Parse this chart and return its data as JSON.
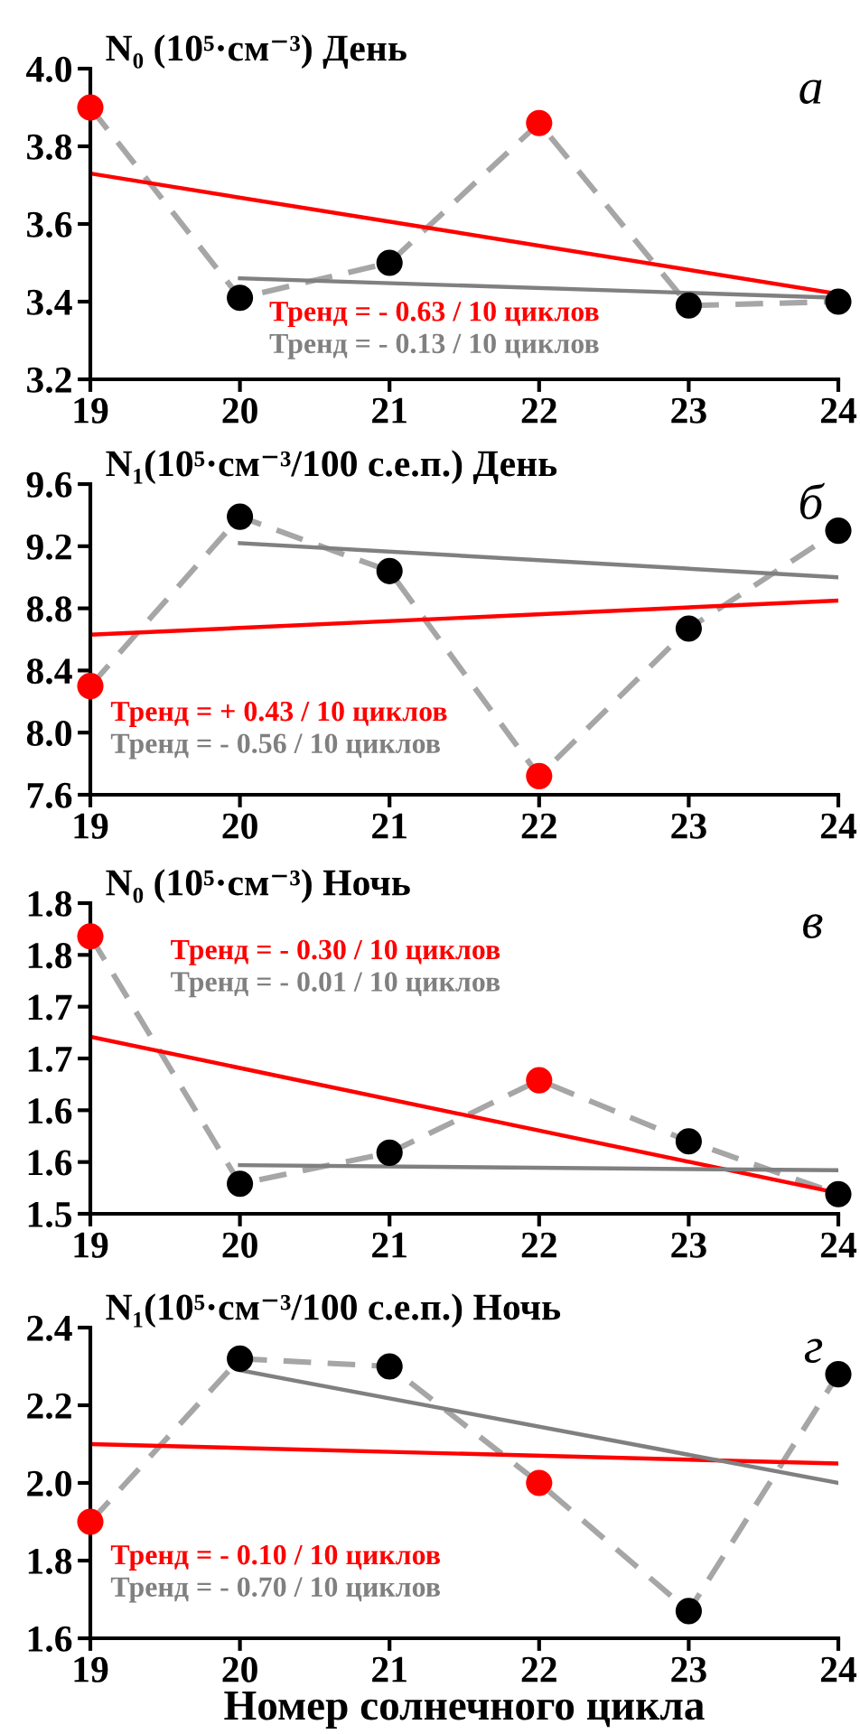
{
  "chart_data": [
    {
      "type": "line",
      "title": "N₀ (10⁵·см⁻³) День",
      "annotations": [
        "а"
      ],
      "xlim": [
        19,
        24
      ],
      "xticks": [
        19,
        20,
        21,
        22,
        23,
        24
      ],
      "ylim": [
        3.2,
        4.0
      ],
      "yticks": [
        {
          "value": 3.2,
          "label": "3.2"
        },
        {
          "value": 3.4,
          "label": "3.4"
        },
        {
          "value": 3.6,
          "label": "3.6"
        },
        {
          "value": 3.8,
          "label": "3.8"
        },
        {
          "value": 4.0,
          "label": "4.0"
        }
      ],
      "grid": false,
      "legend": "bottom",
      "x": [
        19,
        20,
        21,
        22,
        23,
        24
      ],
      "series": [
        {
          "color": "#a6a6a6",
          "line_style": "dashed",
          "marker": "none",
          "values": [
            3.9,
            3.41,
            3.5,
            3.86,
            3.39,
            3.4
          ]
        },
        {
          "type": "scatter",
          "colors": [
            "#ff0000",
            "#000000",
            "#000000",
            "#ff0000",
            "#000000",
            "#000000"
          ],
          "marker": "circle",
          "values": [
            3.9,
            3.41,
            3.5,
            3.86,
            3.39,
            3.4
          ]
        },
        {
          "name": "Тренд = - 0.63 / 10 циклов",
          "color": "#ff0000",
          "line_style": "solid",
          "marker": "none",
          "x": [
            19,
            24
          ],
          "values": [
            3.73,
            3.42
          ]
        },
        {
          "name": "Тренд = - 0.13 / 10 циклов",
          "color": "#808080",
          "line_style": "solid",
          "marker": "none",
          "x": [
            20,
            24
          ],
          "values": [
            3.46,
            3.41
          ]
        }
      ]
    },
    {
      "type": "line",
      "title": "N₁(10⁵·см⁻³/100 с.е.п.) День",
      "annotations": [
        "б"
      ],
      "xlim": [
        19,
        24
      ],
      "xticks": [
        19,
        20,
        21,
        22,
        23,
        24
      ],
      "ylim": [
        7.6,
        9.6
      ],
      "yticks": [
        {
          "value": 7.6,
          "label": "7.6"
        },
        {
          "value": 8.0,
          "label": "8.0"
        },
        {
          "value": 8.4,
          "label": "8.4"
        },
        {
          "value": 8.8,
          "label": "8.8"
        },
        {
          "value": 9.2,
          "label": "9.2"
        },
        {
          "value": 9.6,
          "label": "9.6"
        }
      ],
      "grid": false,
      "legend": "bottom left",
      "x": [
        19,
        20,
        21,
        22,
        23,
        24
      ],
      "series": [
        {
          "color": "#a6a6a6",
          "line_style": "dashed",
          "marker": "none",
          "values": [
            8.3,
            9.39,
            9.04,
            7.72,
            8.67,
            9.3
          ]
        },
        {
          "type": "scatter",
          "colors": [
            "#ff0000",
            "#000000",
            "#000000",
            "#ff0000",
            "#000000",
            "#000000"
          ],
          "marker": "circle",
          "values": [
            8.3,
            9.39,
            9.04,
            7.72,
            8.67,
            9.3
          ]
        },
        {
          "name": "Тренд = + 0.43 / 10 циклов",
          "color": "#ff0000",
          "line_style": "solid",
          "marker": "none",
          "x": [
            19,
            24
          ],
          "values": [
            8.63,
            8.85
          ]
        },
        {
          "name": "Тренд = - 0.56 / 10 циклов",
          "color": "#808080",
          "line_style": "solid",
          "marker": "none",
          "x": [
            20,
            24
          ],
          "values": [
            9.22,
            9.0
          ]
        }
      ]
    },
    {
      "type": "line",
      "title": "N₀ (10⁵·см⁻³) Ночь",
      "annotations": [
        "в"
      ],
      "xlim": [
        19,
        24
      ],
      "xticks": [
        19,
        20,
        21,
        22,
        23,
        24
      ],
      "ylim": [
        1.5,
        1.8
      ],
      "yticks": [
        {
          "value": 1.5,
          "label": "1.5"
        },
        {
          "value": 1.55,
          "label": "1.6"
        },
        {
          "value": 1.6,
          "label": "1.6"
        },
        {
          "value": 1.65,
          "label": "1.7"
        },
        {
          "value": 1.7,
          "label": "1.7"
        },
        {
          "value": 1.75,
          "label": "1.8"
        },
        {
          "value": 1.8,
          "label": "1.8"
        }
      ],
      "grid": false,
      "legend": "top left",
      "x": [
        19,
        20,
        21,
        22,
        23,
        24
      ],
      "series": [
        {
          "color": "#a6a6a6",
          "line_style": "dashed",
          "marker": "none",
          "values": [
            1.768,
            1.529,
            1.559,
            1.629,
            1.57,
            1.519
          ]
        },
        {
          "type": "scatter",
          "colors": [
            "#ff0000",
            "#000000",
            "#000000",
            "#ff0000",
            "#000000",
            "#000000"
          ],
          "marker": "circle",
          "values": [
            1.768,
            1.529,
            1.559,
            1.629,
            1.57,
            1.519
          ]
        },
        {
          "name": "Тренд = - 0.30 / 10 циклов",
          "color": "#ff0000",
          "line_style": "solid",
          "marker": "none",
          "x": [
            19,
            24
          ],
          "values": [
            1.671,
            1.52
          ]
        },
        {
          "name": "Тренд = - 0.01 / 10 циклов",
          "color": "#808080",
          "line_style": "solid",
          "marker": "none",
          "x": [
            20,
            24
          ],
          "values": [
            1.547,
            1.542
          ]
        }
      ]
    },
    {
      "type": "line",
      "title": "N₁(10⁵·см⁻³/100 с.е.п.) Ночь",
      "annotations": [
        "г"
      ],
      "xlabel": "Номер солнечного цикла",
      "xlim": [
        19,
        24
      ],
      "xticks": [
        19,
        20,
        21,
        22,
        23,
        24
      ],
      "ylim": [
        1.6,
        2.4
      ],
      "yticks": [
        {
          "value": 1.6,
          "label": "1.6"
        },
        {
          "value": 1.8,
          "label": "1.8"
        },
        {
          "value": 2.0,
          "label": "2.0"
        },
        {
          "value": 2.2,
          "label": "2.2"
        },
        {
          "value": 2.4,
          "label": "2.4"
        }
      ],
      "grid": false,
      "legend": "bottom left",
      "x": [
        19,
        20,
        21,
        22,
        23,
        24
      ],
      "series": [
        {
          "color": "#a6a6a6",
          "line_style": "dashed",
          "marker": "none",
          "values": [
            1.9,
            2.32,
            2.3,
            2.0,
            1.67,
            2.28
          ]
        },
        {
          "type": "scatter",
          "colors": [
            "#ff0000",
            "#000000",
            "#000000",
            "#ff0000",
            "#000000",
            "#000000"
          ],
          "marker": "circle",
          "values": [
            1.9,
            2.32,
            2.3,
            2.0,
            1.67,
            2.28
          ]
        },
        {
          "name": "Тренд = - 0.10 / 10 циклов",
          "color": "#ff0000",
          "line_style": "solid",
          "marker": "none",
          "x": [
            19,
            24
          ],
          "values": [
            2.1,
            2.05
          ]
        },
        {
          "name": "Тренд = - 0.70 / 10 циклов",
          "color": "#808080",
          "line_style": "solid",
          "marker": "none",
          "x": [
            20,
            24
          ],
          "values": [
            2.29,
            2.0
          ]
        }
      ]
    }
  ]
}
